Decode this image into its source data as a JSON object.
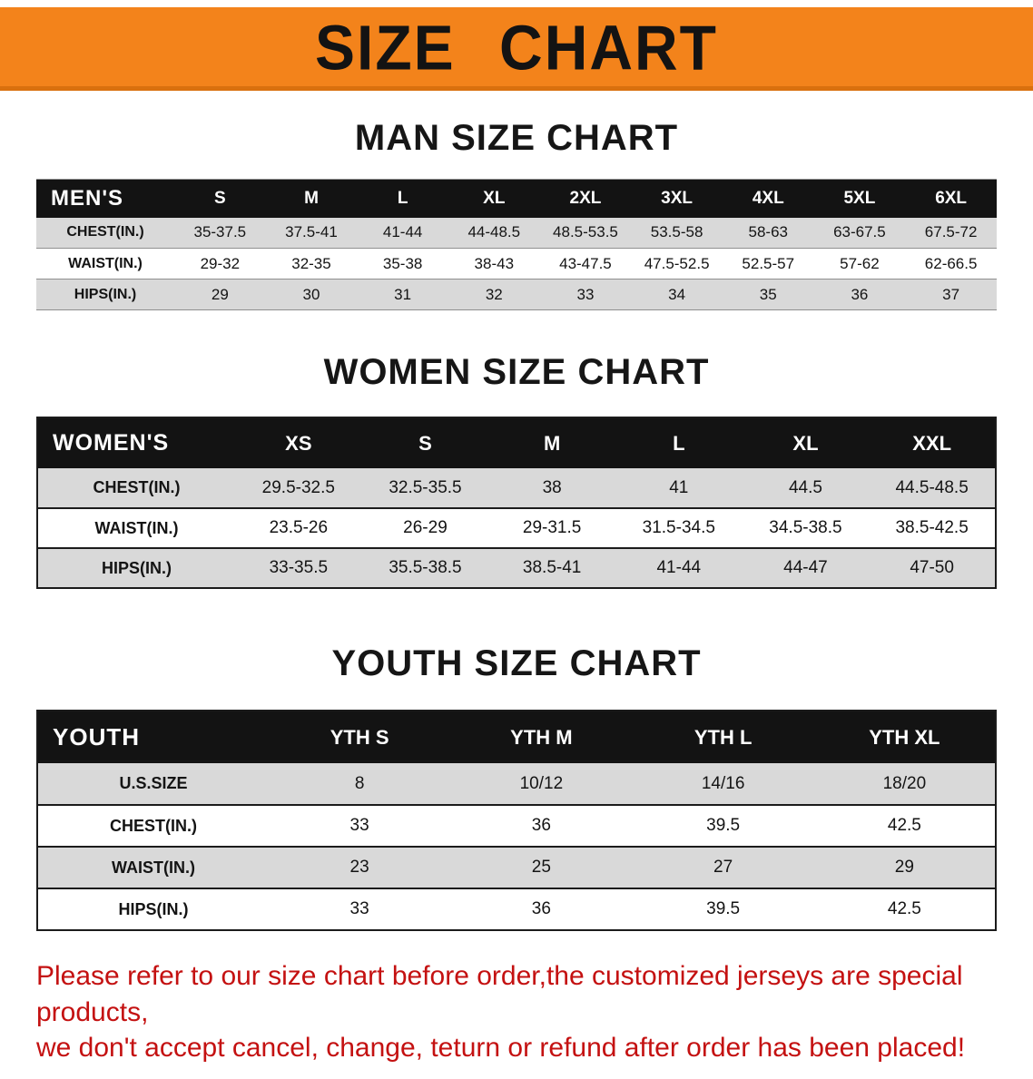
{
  "banner": {
    "title": "SIZE CHART"
  },
  "sections": [
    {
      "heading": "MAN SIZE CHART",
      "label": "MEN'S",
      "columns": [
        "S",
        "M",
        "L",
        "XL",
        "2XL",
        "3XL",
        "4XL",
        "5XL",
        "6XL"
      ],
      "rows": [
        {
          "label": "CHEST(IN.)",
          "values": [
            "35-37.5",
            "37.5-41",
            "41-44",
            "44-48.5",
            "48.5-53.5",
            "53.5-58",
            "58-63",
            "63-67.5",
            "67.5-72"
          ]
        },
        {
          "label": "WAIST(IN.)",
          "values": [
            "29-32",
            "32-35",
            "35-38",
            "38-43",
            "43-47.5",
            "47.5-52.5",
            "52.5-57",
            "57-62",
            "62-66.5"
          ]
        },
        {
          "label": "HIPS(IN.)",
          "values": [
            "29",
            "30",
            "31",
            "32",
            "33",
            "34",
            "35",
            "36",
            "37"
          ]
        }
      ]
    },
    {
      "heading": "WOMEN SIZE CHART",
      "label": "WOMEN'S",
      "columns": [
        "XS",
        "S",
        "M",
        "L",
        "XL",
        "XXL"
      ],
      "rows": [
        {
          "label": "CHEST(IN.)",
          "values": [
            "29.5-32.5",
            "32.5-35.5",
            "38",
            "41",
            "44.5",
            "44.5-48.5"
          ]
        },
        {
          "label": "WAIST(IN.)",
          "values": [
            "23.5-26",
            "26-29",
            "29-31.5",
            "31.5-34.5",
            "34.5-38.5",
            "38.5-42.5"
          ]
        },
        {
          "label": "HIPS(IN.)",
          "values": [
            "33-35.5",
            "35.5-38.5",
            "38.5-41",
            "41-44",
            "44-47",
            "47-50"
          ]
        }
      ]
    },
    {
      "heading": "YOUTH SIZE CHART",
      "label": "YOUTH",
      "columns": [
        "YTH S",
        "YTH M",
        "YTH L",
        "YTH XL"
      ],
      "rows": [
        {
          "label": "U.S.SIZE",
          "values": [
            "8",
            "10/12",
            "14/16",
            "18/20"
          ]
        },
        {
          "label": "CHEST(IN.)",
          "values": [
            "33",
            "36",
            "39.5",
            "42.5"
          ]
        },
        {
          "label": "WAIST(IN.)",
          "values": [
            "23",
            "25",
            "27",
            "29"
          ]
        },
        {
          "label": "HIPS(IN.)",
          "values": [
            "33",
            "36",
            "39.5",
            "42.5"
          ]
        }
      ]
    }
  ],
  "disclaimer": {
    "line1": "Please refer to our size chart before order,the customized jerseys are special products,",
    "line2": "we don't accept cancel, change, teturn or refund after order has been placed!"
  },
  "colors": {
    "banner_bg": "#f3831b",
    "banner_edge": "#d9700e",
    "header_bg": "#131313",
    "row_alt_bg": "#d9d9d9",
    "disclaimer_text": "#c41111"
  }
}
